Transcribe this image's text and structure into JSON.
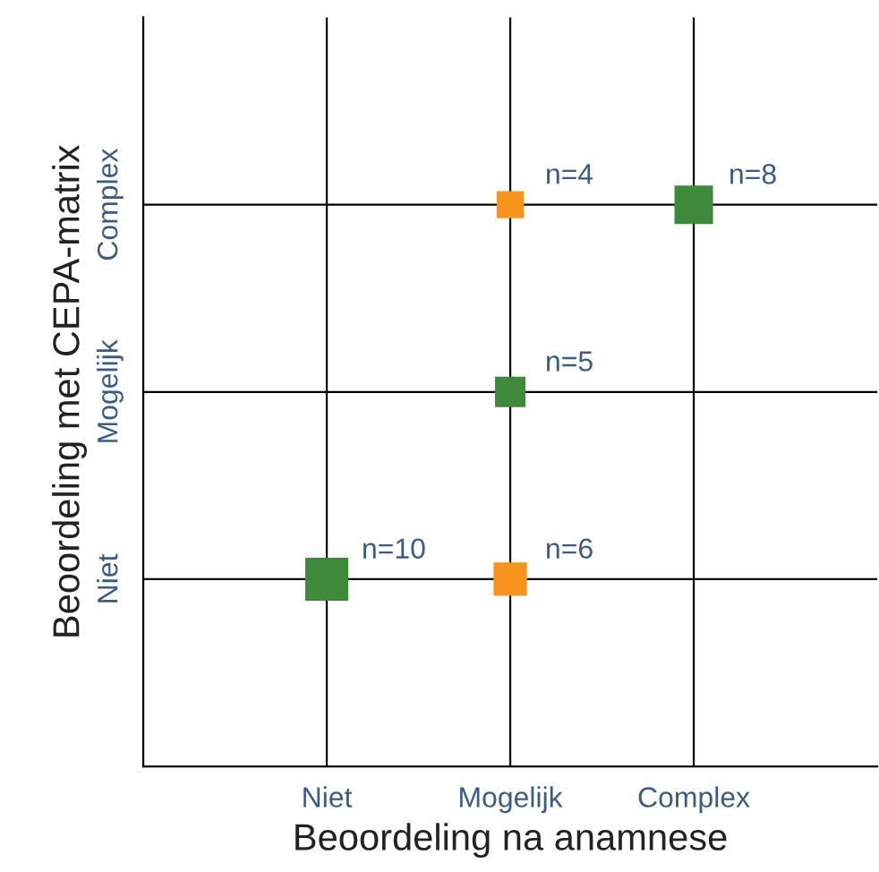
{
  "chart_data": {
    "type": "heatmap",
    "xlabel": "Beoordeling na anamnese",
    "ylabel": "Beoordeling met CEPA-matrix",
    "categories": [
      "Niet",
      "Mogelijk",
      "Complex"
    ],
    "y_categories": [
      "Complex",
      "Mogelijk",
      "Niet"
    ],
    "cells": [
      [
        null,
        4,
        8
      ],
      [
        null,
        5,
        null
      ],
      [
        10,
        6,
        null
      ]
    ],
    "cell_labels": [
      [
        null,
        "n=4",
        "n=8"
      ],
      [
        null,
        "n=5",
        null
      ],
      [
        "n=10",
        "n=6",
        null
      ]
    ],
    "colors": [
      [
        null,
        "#f7941d",
        "#3f8a3a"
      ],
      [
        null,
        "#3f8a3a",
        null
      ],
      [
        "#3f8a3a",
        "#f7941d",
        null
      ]
    ],
    "marker": "square",
    "grid": true
  }
}
